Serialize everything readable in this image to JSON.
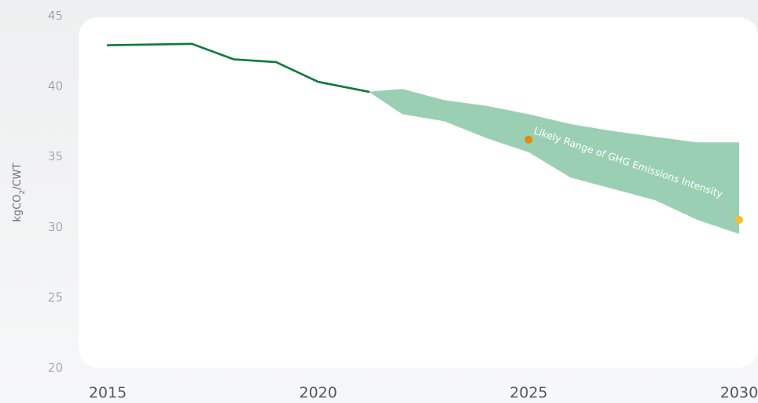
{
  "chart_data": {
    "type": "line",
    "title": "",
    "xlabel": "",
    "ylabel": "kgCO",
    "ylabel_sub": "2",
    "ylabel_suffix": "/CWT",
    "xlim": [
      2015,
      2030
    ],
    "ylim": [
      20,
      45
    ],
    "x_ticks": [
      "2015",
      "2020",
      "2025",
      "2030"
    ],
    "y_ticks": [
      "20",
      "25",
      "30",
      "35",
      "40",
      "45"
    ],
    "grid": false,
    "series": [
      {
        "type": "line",
        "color": "#0c7a3a",
        "x": [
          2015,
          2017,
          2018,
          2019,
          2020,
          2021.2
        ],
        "y": [
          42.9,
          43.0,
          41.9,
          41.7,
          40.3,
          39.6
        ]
      },
      {
        "type": "area-range",
        "color": "#9bcfb4",
        "x": [
          2021.2,
          2022,
          2023,
          2024,
          2025,
          2026,
          2027,
          2028,
          2029,
          2030
        ],
        "upper": [
          39.6,
          39.8,
          39.0,
          38.6,
          38.0,
          37.3,
          36.8,
          36.4,
          36.0,
          36.0
        ],
        "lower": [
          39.6,
          38.0,
          37.5,
          36.3,
          35.3,
          33.5,
          32.7,
          31.9,
          30.5,
          29.5
        ]
      }
    ],
    "points": [
      {
        "x": 2025,
        "y": 36.2,
        "color": "#e08a10"
      },
      {
        "x": 2030,
        "y": 30.5,
        "color": "#f5c030"
      }
    ],
    "annotation": "Likely Range of GHG Emissions Intensity"
  }
}
